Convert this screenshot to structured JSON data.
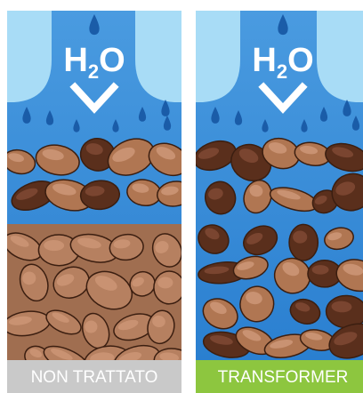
{
  "panels": [
    {
      "formula": {
        "element1": "H",
        "subscript": "2",
        "element2": "O"
      },
      "label": "NON TRATTATO"
    },
    {
      "formula": {
        "element1": "H",
        "subscript": "2",
        "element2": "O"
      },
      "label": "TRANSFORMER"
    }
  ]
}
